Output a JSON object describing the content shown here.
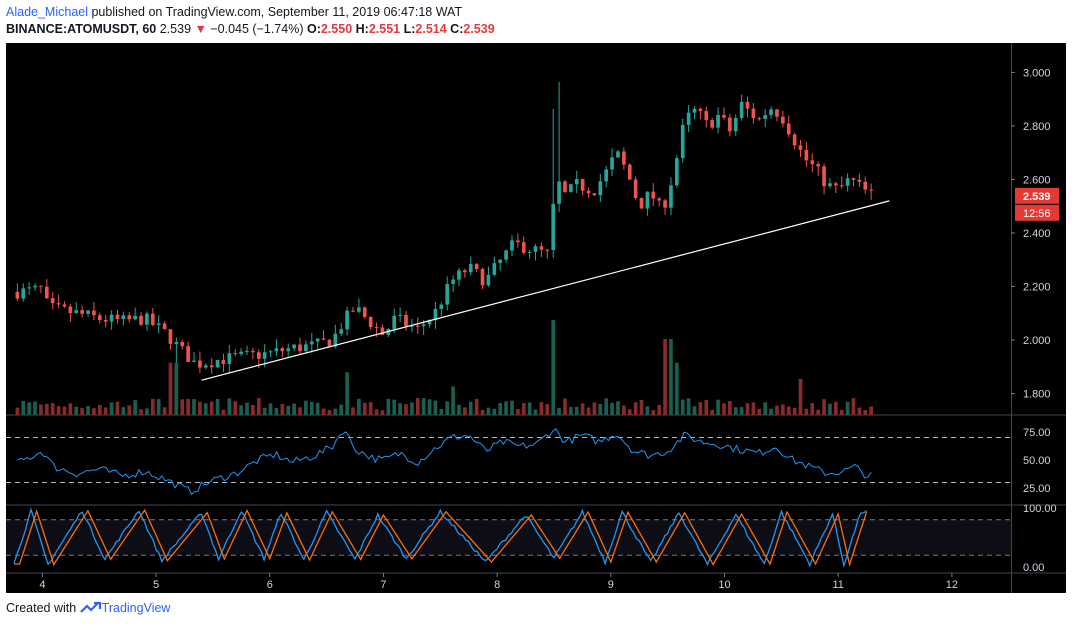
{
  "header": {
    "author": "Alade_Michael",
    "published": "published on TradingView.com, September 11, 2019 06:47:18 WAT",
    "symbol": "BINANCE:ATOMUSDT, 60",
    "last": "2.539",
    "change": "−0.045 (−1.74%)",
    "o_label": "O:",
    "o": "2.550",
    "h_label": "H:",
    "h": "2.551",
    "l_label": "L:",
    "l": "2.514",
    "c_label": "C:",
    "c": "2.539"
  },
  "footer": {
    "created_with": "Created with",
    "brand": "TradingView"
  },
  "colors": {
    "background": "#000000",
    "up": "#26a69a",
    "down": "#ef5350",
    "volume_up": "#1b5e52",
    "volume_down": "#8b2a2a",
    "rsi": "#2196f3",
    "stoch_k": "#2196f3",
    "stoch_d": "#ff6d00",
    "trendline": "#ffffff",
    "price_tag": "#e53935"
  },
  "chart_data": [
    {
      "type": "candlestick",
      "name": "price",
      "x_tick_labels": [
        "4",
        "5",
        "6",
        "7",
        "8",
        "9",
        "10",
        "11",
        "12"
      ],
      "y_tick_labels": [
        "3.000",
        "2.800",
        "2.600",
        "2.400",
        "2.200",
        "2.000",
        "1.800"
      ],
      "ylim": [
        1.72,
        3.08
      ],
      "last_price_label": "2.539",
      "countdown_label": "12:56",
      "trendline": {
        "from": [
          5.4,
          1.85
        ],
        "to": [
          11.45,
          2.52
        ]
      },
      "close_anchors": [
        [
          3.8,
          2.18
        ],
        [
          4.0,
          2.19
        ],
        [
          4.05,
          2.12
        ],
        [
          4.3,
          2.1
        ],
        [
          4.5,
          2.08
        ],
        [
          4.7,
          2.07
        ],
        [
          4.9,
          2.08
        ],
        [
          5.1,
          2.02
        ],
        [
          5.2,
          1.97
        ],
        [
          5.35,
          1.91
        ],
        [
          5.6,
          1.93
        ],
        [
          5.8,
          1.94
        ],
        [
          6.0,
          1.95
        ],
        [
          6.2,
          1.97
        ],
        [
          6.4,
          1.98
        ],
        [
          6.55,
          2.0
        ],
        [
          6.65,
          2.07
        ],
        [
          6.75,
          2.12
        ],
        [
          6.85,
          2.08
        ],
        [
          7.0,
          2.02
        ],
        [
          7.1,
          2.08
        ],
        [
          7.2,
          2.06
        ],
        [
          7.3,
          2.04
        ],
        [
          7.45,
          2.1
        ],
        [
          7.6,
          2.22
        ],
        [
          7.75,
          2.27
        ],
        [
          7.9,
          2.22
        ],
        [
          8.0,
          2.28
        ],
        [
          8.15,
          2.36
        ],
        [
          8.3,
          2.34
        ],
        [
          8.45,
          2.32
        ],
        [
          8.52,
          2.6
        ],
        [
          8.6,
          2.54
        ],
        [
          8.7,
          2.58
        ],
        [
          8.85,
          2.56
        ],
        [
          8.95,
          2.62
        ],
        [
          9.05,
          2.7
        ],
        [
          9.15,
          2.62
        ],
        [
          9.25,
          2.5
        ],
        [
          9.35,
          2.55
        ],
        [
          9.45,
          2.48
        ],
        [
          9.55,
          2.62
        ],
        [
          9.65,
          2.82
        ],
        [
          9.75,
          2.86
        ],
        [
          9.85,
          2.8
        ],
        [
          9.95,
          2.84
        ],
        [
          10.05,
          2.78
        ],
        [
          10.15,
          2.88
        ],
        [
          10.3,
          2.82
        ],
        [
          10.4,
          2.87
        ],
        [
          10.5,
          2.84
        ],
        [
          10.6,
          2.76
        ],
        [
          10.7,
          2.68
        ],
        [
          10.8,
          2.64
        ],
        [
          10.9,
          2.58
        ],
        [
          11.0,
          2.56
        ],
        [
          11.1,
          2.6
        ],
        [
          11.2,
          2.57
        ],
        [
          11.28,
          2.54
        ]
      ],
      "volume_spikes": [
        [
          5.15,
          0.55
        ],
        [
          8.48,
          1.0
        ],
        [
          8.5,
          0.85
        ],
        [
          9.5,
          0.8
        ],
        [
          9.6,
          0.55
        ],
        [
          6.7,
          0.45
        ],
        [
          7.6,
          0.3
        ],
        [
          10.65,
          0.38
        ]
      ]
    },
    {
      "type": "line",
      "name": "rsi",
      "y_tick_labels": [
        "75.00",
        "50.00",
        "25.00"
      ],
      "ylim": [
        10,
        90
      ],
      "levels": [
        70,
        30
      ],
      "anchors": [
        [
          3.8,
          48
        ],
        [
          4.0,
          58
        ],
        [
          4.1,
          44
        ],
        [
          4.3,
          38
        ],
        [
          4.5,
          42
        ],
        [
          4.7,
          36
        ],
        [
          4.9,
          40
        ],
        [
          5.1,
          32
        ],
        [
          5.3,
          22
        ],
        [
          5.5,
          32
        ],
        [
          5.7,
          38
        ],
        [
          5.9,
          50
        ],
        [
          6.05,
          55
        ],
        [
          6.2,
          48
        ],
        [
          6.4,
          54
        ],
        [
          6.55,
          62
        ],
        [
          6.65,
          78
        ],
        [
          6.75,
          60
        ],
        [
          6.9,
          52
        ],
        [
          7.0,
          50
        ],
        [
          7.15,
          56
        ],
        [
          7.3,
          48
        ],
        [
          7.45,
          60
        ],
        [
          7.6,
          70
        ],
        [
          7.75,
          72
        ],
        [
          7.9,
          58
        ],
        [
          8.05,
          66
        ],
        [
          8.2,
          62
        ],
        [
          8.35,
          64
        ],
        [
          8.5,
          78
        ],
        [
          8.6,
          66
        ],
        [
          8.75,
          72
        ],
        [
          8.9,
          66
        ],
        [
          9.05,
          74
        ],
        [
          9.2,
          58
        ],
        [
          9.35,
          54
        ],
        [
          9.5,
          58
        ],
        [
          9.65,
          72
        ],
        [
          9.8,
          66
        ],
        [
          9.95,
          64
        ],
        [
          10.1,
          60
        ],
        [
          10.3,
          56
        ],
        [
          10.45,
          62
        ],
        [
          10.6,
          50
        ],
        [
          10.75,
          44
        ],
        [
          10.9,
          38
        ],
        [
          11.05,
          40
        ],
        [
          11.15,
          44
        ],
        [
          11.25,
          36
        ]
      ]
    },
    {
      "type": "line",
      "name": "stochastic",
      "y_tick_labels": [
        "100.00",
        "0.00"
      ],
      "ylim": [
        -10,
        105
      ],
      "levels": [
        80,
        20
      ],
      "peaks": [
        3.9,
        4.35,
        4.85,
        5.4,
        5.75,
        6.1,
        6.5,
        6.95,
        7.5,
        8.25,
        8.75,
        9.1,
        9.6,
        10.1,
        10.5,
        10.95,
        11.2
      ],
      "troughs": [
        3.75,
        4.05,
        4.55,
        5.05,
        5.55,
        5.95,
        6.3,
        6.75,
        7.2,
        7.9,
        8.5,
        8.95,
        9.35,
        9.85,
        10.35,
        10.75,
        11.05
      ]
    }
  ]
}
